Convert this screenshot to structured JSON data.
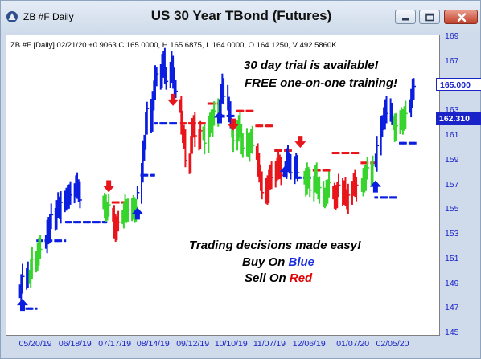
{
  "window": {
    "title": "ZB #F Daily",
    "chart_title": "US 30 Year TBond (Futures)",
    "buttons": [
      "minimize",
      "restore",
      "close"
    ]
  },
  "info_line": "ZB #F [Daily] 02/21/20 +0.9063 C 165.0000, H 165.6875, L 164.0000, O 164.1250, V 492.5860K",
  "promo": {
    "line1": "30 day trial is available!",
    "line2": "FREE one-on-one training!",
    "decisions": "Trading decisions made easy!",
    "buy_prefix": "Buy On ",
    "buy_word": "Blue",
    "sell_prefix": "Sell On ",
    "sell_word": "Red"
  },
  "price_tags": {
    "last": "165.000",
    "ref": "162.310"
  },
  "colors": {
    "up": "#0b1ee0",
    "down": "#e8151b",
    "neutral": "#36d42c",
    "axis_text": "#1a23c8"
  },
  "y_axis": {
    "ticks": [
      "169",
      "167",
      "165",
      "163",
      "161",
      "159",
      "157",
      "155",
      "153",
      "151",
      "149",
      "147",
      "145"
    ]
  },
  "x_axis": {
    "ticks": [
      "05/20/19",
      "06/18/19",
      "07/17/19",
      "08/14/19",
      "09/12/19",
      "10/10/19",
      "11/07/19",
      "12/06/19",
      "01/07/20",
      "02/05/20"
    ]
  },
  "chart_data": {
    "type": "bar",
    "title": "US 30 Year TBond (Futures)",
    "symbol": "ZB #F",
    "timeframe": "Daily",
    "ylim": [
      145,
      170
    ],
    "x_ticks": [
      "05/20/19",
      "06/18/19",
      "07/17/19",
      "08/14/19",
      "09/12/19",
      "10/10/19",
      "11/07/19",
      "12/06/19",
      "01/07/20",
      "02/05/20"
    ],
    "last_bar": {
      "date": "02/21/20",
      "change": 0.9063,
      "close": 165.0,
      "high": 165.6875,
      "low": 164.0,
      "open": 164.125,
      "volume": "492.5860K"
    },
    "series": [
      {
        "segment": "blue",
        "from": "05/08/19",
        "to": "05/14/19",
        "points": [
          148.4,
          149.0,
          149.6,
          149.2,
          149.9
        ]
      },
      {
        "segment": "green",
        "from": "05/15/19",
        "to": "05/24/19",
        "points": [
          149.6,
          150.2,
          151.0,
          150.6,
          151.4,
          152.2,
          151.8
        ]
      },
      {
        "segment": "blue",
        "from": "05/27/19",
        "to": "07/05/19",
        "points": [
          152.4,
          153.4,
          153.0,
          154.0,
          154.6,
          154.2,
          155.0,
          155.4,
          154.8,
          155.6,
          156.0,
          155.6,
          156.0,
          156.4,
          156.2,
          156.6,
          157.0,
          156.8,
          156.4,
          155.8
        ]
      },
      {
        "segment": "green",
        "from": "07/08/19",
        "to": "07/12/19",
        "points": [
          155.6,
          155.2,
          154.8,
          155.0,
          155.4
        ]
      },
      {
        "segment": "red",
        "from": "07/15/19",
        "to": "07/19/19",
        "points": [
          154.6,
          153.6,
          153.2,
          153.8,
          154.0
        ]
      },
      {
        "segment": "green",
        "from": "07/22/19",
        "to": "08/01/19",
        "points": [
          154.4,
          154.8,
          155.2,
          154.6,
          155.0,
          155.4,
          155.0,
          154.6,
          155.2
        ]
      },
      {
        "segment": "blue",
        "from": "08/02/19",
        "to": "08/30/19",
        "points": [
          156.4,
          158.0,
          159.6,
          160.4,
          162.0,
          163.2,
          162.0,
          163.6,
          164.8,
          165.8,
          166.0,
          165.4,
          166.6,
          167.2,
          166.0,
          165.4,
          166.2,
          166.8,
          165.6,
          165.0,
          164.6
        ]
      },
      {
        "segment": "red",
        "from": "09/02/19",
        "to": "09/18/19",
        "points": [
          163.4,
          162.0,
          161.2,
          160.6,
          159.0,
          158.8,
          160.2,
          161.4,
          162.0,
          161.0,
          160.6,
          161.4
        ]
      },
      {
        "segment": "green",
        "from": "09/19/19",
        "to": "09/30/19",
        "points": [
          161.2,
          160.4,
          161.6,
          162.2,
          161.8,
          162.6,
          163.0,
          162.4
        ]
      },
      {
        "segment": "blue",
        "from": "10/01/19",
        "to": "10/09/19",
        "points": [
          163.4,
          164.4,
          165.0,
          164.2,
          163.6,
          163.0,
          162.4
        ]
      },
      {
        "segment": "green",
        "from": "10/10/19",
        "to": "10/25/19",
        "points": [
          161.4,
          160.6,
          161.2,
          162.0,
          161.4,
          160.4,
          160.0,
          160.6,
          159.8,
          160.4,
          161.0,
          160.2
        ]
      },
      {
        "segment": "red",
        "from": "10/28/19",
        "to": "11/15/19",
        "points": [
          159.6,
          158.6,
          158.0,
          157.2,
          156.4,
          157.0,
          156.2,
          157.2,
          158.0,
          157.6,
          158.4,
          158.0,
          158.8,
          158.4,
          157.8
        ]
      },
      {
        "segment": "blue",
        "from": "11/18/19",
        "to": "11/29/19",
        "points": [
          158.4,
          159.2,
          159.0,
          158.6,
          158.0,
          158.8,
          158.4,
          158.0
        ]
      },
      {
        "segment": "green",
        "from": "12/02/19",
        "to": "12/20/19",
        "points": [
          157.6,
          157.0,
          157.8,
          157.4,
          156.6,
          157.2,
          157.8,
          157.0,
          156.4,
          156.8,
          156.0,
          155.8,
          156.4,
          156.8,
          157.2
        ]
      },
      {
        "segment": "red",
        "from": "12/23/19",
        "to": "01/10/20",
        "points": [
          156.4,
          156.0,
          155.8,
          156.6,
          157.0,
          156.2,
          156.6,
          156.0,
          155.6,
          156.2,
          156.8,
          157.2,
          156.6,
          157.0
        ]
      },
      {
        "segment": "green",
        "from": "01/13/20",
        "to": "01/22/20",
        "points": [
          157.0,
          157.6,
          157.2,
          158.0,
          158.4,
          157.8,
          158.6
        ]
      },
      {
        "segment": "blue",
        "from": "01/23/20",
        "to": "02/04/20",
        "points": [
          159.0,
          160.2,
          161.6,
          162.0,
          162.4,
          163.4,
          162.8,
          163.0,
          162.4
        ]
      },
      {
        "segment": "green",
        "from": "02/05/20",
        "to": "02/14/20",
        "points": [
          162.0,
          161.4,
          161.8,
          162.4,
          162.0,
          162.6,
          162.2,
          162.8
        ]
      },
      {
        "segment": "blue",
        "from": "02/17/20",
        "to": "02/21/20",
        "points": [
          163.4,
          164.0,
          164.6,
          165.0
        ]
      }
    ],
    "stop_levels": [
      {
        "color": "blue",
        "from": "05/10/19",
        "to": "05/20/19",
        "value": 147.0
      },
      {
        "color": "blue",
        "from": "05/21/19",
        "to": "06/10/19",
        "value": 152.5
      },
      {
        "color": "blue",
        "from": "06/11/19",
        "to": "07/10/19",
        "value": 154.0
      },
      {
        "color": "red",
        "from": "07/15/19",
        "to": "07/26/19",
        "value": 155.6
      },
      {
        "color": "blue",
        "from": "08/05/19",
        "to": "08/14/19",
        "value": 157.8
      },
      {
        "color": "blue",
        "from": "08/15/19",
        "to": "08/30/19",
        "value": 162.0
      },
      {
        "color": "red",
        "from": "09/03/19",
        "to": "09/20/19",
        "value": 162.0
      },
      {
        "color": "red",
        "from": "09/23/19",
        "to": "09/30/19",
        "value": 163.6
      },
      {
        "color": "blue",
        "from": "10/01/19",
        "to": "10/11/19",
        "value": 162.6
      },
      {
        "color": "red",
        "from": "10/14/19",
        "to": "10/25/19",
        "value": 163.0
      },
      {
        "color": "red",
        "from": "10/28/19",
        "to": "11/08/19",
        "value": 161.8
      },
      {
        "color": "red",
        "from": "11/11/19",
        "to": "11/22/19",
        "value": 159.8
      },
      {
        "color": "blue",
        "from": "11/25/19",
        "to": "12/06/19",
        "value": 157.6
      },
      {
        "color": "red",
        "from": "12/09/19",
        "to": "12/20/19",
        "value": 158.2
      },
      {
        "color": "red",
        "from": "12/23/19",
        "to": "01/10/20",
        "value": 159.6
      },
      {
        "color": "red",
        "from": "01/13/20",
        "to": "01/22/20",
        "value": 158.8
      },
      {
        "color": "blue",
        "from": "01/23/20",
        "to": "02/07/20",
        "value": 156.0
      },
      {
        "color": "blue",
        "from": "02/10/20",
        "to": "02/21/20",
        "value": 160.4
      }
    ],
    "signals": [
      {
        "type": "buy",
        "date": "05/10/19",
        "price": 147.2
      },
      {
        "type": "sell",
        "date": "07/12/19",
        "price": 157.0
      },
      {
        "type": "buy",
        "date": "08/02/19",
        "price": 154.6
      },
      {
        "type": "sell",
        "date": "08/28/19",
        "price": 164.0
      },
      {
        "type": "buy",
        "date": "10/01/19",
        "price": 162.4
      },
      {
        "type": "sell",
        "date": "10/11/19",
        "price": 162.0
      },
      {
        "type": "buy",
        "date": "11/18/19",
        "price": 158.0
      },
      {
        "type": "sell",
        "date": "11/29/19",
        "price": 160.6
      },
      {
        "type": "buy",
        "date": "01/23/20",
        "price": 156.8
      }
    ]
  }
}
